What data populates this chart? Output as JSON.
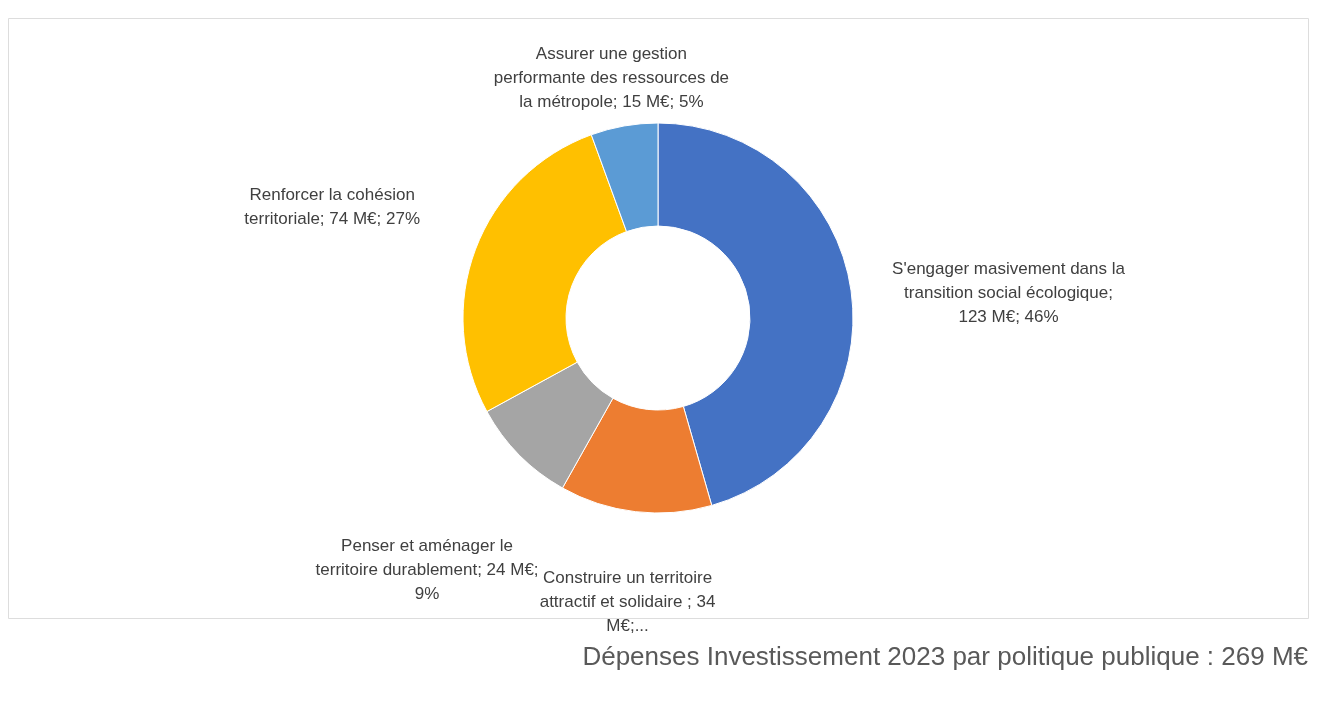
{
  "chart_data": {
    "type": "donut",
    "title": "Dépenses Investissement 2023 par politique publique : 269 M€",
    "categories": [
      "S'engager masivement dans la transition social écologique",
      "Construire un territoire attractif et solidaire",
      "Penser et aménager le territoire durablement",
      "Renforcer la cohésion territoriale",
      "Assurer une gestion performante des ressources de la métropole"
    ],
    "values": [
      123,
      34,
      24,
      74,
      15
    ],
    "value_labels": [
      "; 123 M€; 46%",
      " ; 34 M€;...",
      "; 24 M€; 9%",
      "; 74 M€; 27%",
      "; 15 M€; 5%"
    ],
    "colors": [
      "#4472c4",
      "#ed7d31",
      "#a5a5a5",
      "#ffc000",
      "#5b9bd5"
    ],
    "legend": false
  }
}
